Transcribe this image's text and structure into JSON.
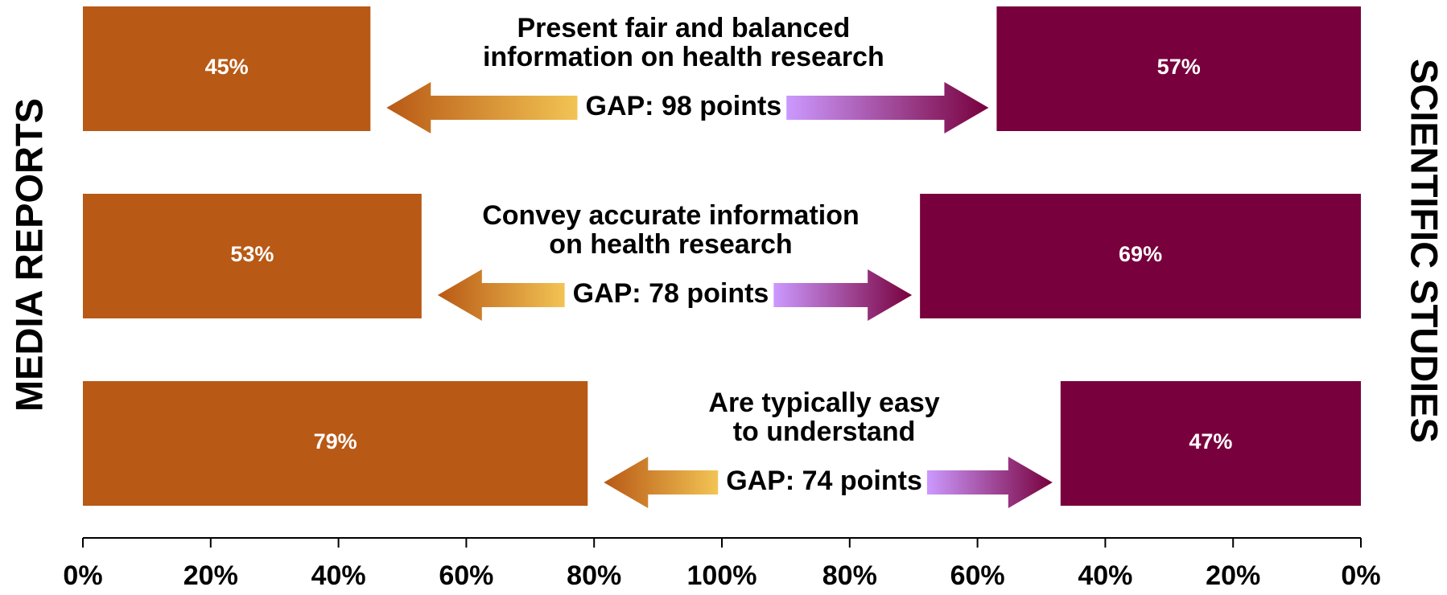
{
  "chart_data": {
    "type": "diverging-bar",
    "categories": [
      "Present fair and balanced information on health research",
      "Convey accurate information on health research",
      "Are typically easy to understand"
    ],
    "title_lines": [
      [
        "Present fair and balanced",
        "information on health research"
      ],
      [
        "Convey accurate information",
        "on health research"
      ],
      [
        "Are typically easy",
        "to understand"
      ]
    ],
    "annotations": [
      "GAP: 98 points",
      "GAP: 78 points",
      "GAP: 74 points"
    ],
    "series": [
      {
        "name": "MEDIA REPORTS",
        "color": "#b85915",
        "values": [
          45,
          53,
          79
        ],
        "value_labels": [
          "45%",
          "53%",
          "79%"
        ]
      },
      {
        "name": "SCIENTIFIC STUDIES",
        "color": "#78003c",
        "values": [
          57,
          69,
          47
        ],
        "value_labels": [
          "57%",
          "69%",
          "47%"
        ],
        "axis": "x2"
      }
    ],
    "xlim": [
      0,
      100
    ],
    "xticks": [
      {
        "value": 0,
        "label": "0%"
      },
      {
        "value": 20,
        "label": "20%"
      },
      {
        "value": 40,
        "label": "40%"
      },
      {
        "value": 60,
        "label": "60%"
      },
      {
        "value": 80,
        "label": "80%"
      },
      {
        "value": 100,
        "label": "100%"
      }
    ],
    "x2lim": [
      0,
      100
    ],
    "x2ticks": [
      {
        "value": 80,
        "label": "80%"
      },
      {
        "value": 60,
        "label": "60%"
      },
      {
        "value": 40,
        "label": "40%"
      },
      {
        "value": 20,
        "label": "20%"
      },
      {
        "value": 0,
        "label": "0%"
      }
    ]
  }
}
